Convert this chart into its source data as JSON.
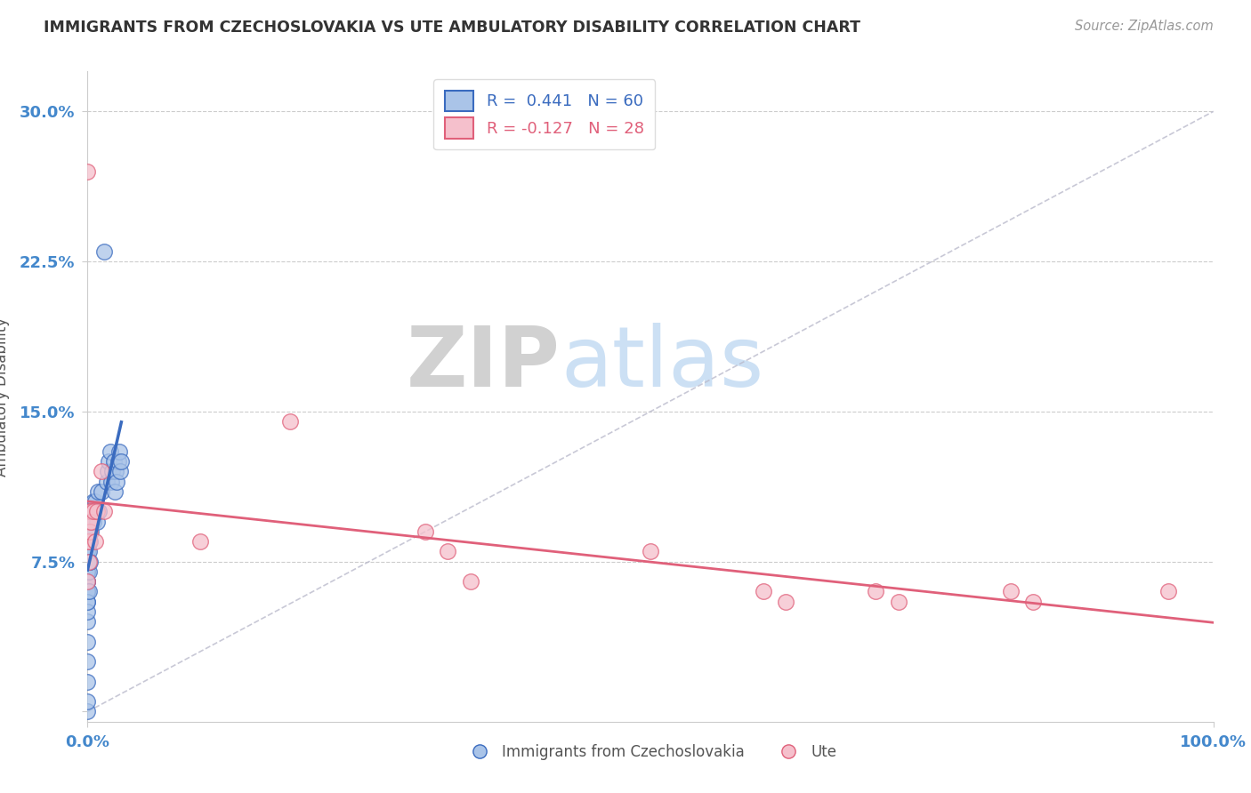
{
  "title": "IMMIGRANTS FROM CZECHOSLOVAKIA VS UTE AMBULATORY DISABILITY CORRELATION CHART",
  "source": "Source: ZipAtlas.com",
  "ylabel": "Ambulatory Disability",
  "xlim": [
    0,
    1.0
  ],
  "ylim": [
    -0.005,
    0.32
  ],
  "yticks": [
    0.0,
    0.075,
    0.15,
    0.225,
    0.3
  ],
  "ytick_labels": [
    "",
    "7.5%",
    "15.0%",
    "22.5%",
    "30.0%"
  ],
  "legend_labels": [
    "Immigrants from Czechoslovakia",
    "Ute"
  ],
  "r_blue": 0.441,
  "n_blue": 60,
  "r_pink": -0.127,
  "n_pink": 28,
  "blue_color": "#aac4e8",
  "pink_color": "#f5c0cc",
  "blue_line_color": "#3a6bbf",
  "pink_line_color": "#e0607a",
  "grid_color": "#cccccc",
  "background_color": "#ffffff",
  "title_color": "#333333",
  "axis_label_color": "#555555",
  "tick_label_color": "#4488cc",
  "watermark_zip": "ZIP",
  "watermark_atlas": "atlas",
  "blue_x": [
    0.0,
    0.0,
    0.0,
    0.0,
    0.0,
    0.0,
    0.0,
    0.0,
    0.0,
    0.0,
    0.0,
    0.0,
    0.0,
    0.0,
    0.0,
    0.0,
    0.0,
    0.0,
    0.0,
    0.0,
    0.001,
    0.001,
    0.001,
    0.001,
    0.001,
    0.001,
    0.001,
    0.001,
    0.002,
    0.002,
    0.002,
    0.002,
    0.003,
    0.003,
    0.003,
    0.004,
    0.004,
    0.005,
    0.005,
    0.006,
    0.007,
    0.008,
    0.009,
    0.01,
    0.012,
    0.015,
    0.017,
    0.018,
    0.019,
    0.02,
    0.021,
    0.022,
    0.023,
    0.024,
    0.025,
    0.026,
    0.027,
    0.028,
    0.029,
    0.03
  ],
  "blue_y": [
    0.0,
    0.005,
    0.015,
    0.025,
    0.035,
    0.045,
    0.055,
    0.06,
    0.065,
    0.07,
    0.075,
    0.08,
    0.085,
    0.09,
    0.095,
    0.05,
    0.06,
    0.07,
    0.055,
    0.065,
    0.06,
    0.07,
    0.075,
    0.08,
    0.085,
    0.09,
    0.095,
    0.1,
    0.075,
    0.085,
    0.09,
    0.1,
    0.09,
    0.095,
    0.1,
    0.095,
    0.1,
    0.095,
    0.105,
    0.1,
    0.105,
    0.095,
    0.11,
    0.1,
    0.11,
    0.23,
    0.115,
    0.12,
    0.125,
    0.13,
    0.115,
    0.12,
    0.125,
    0.11,
    0.12,
    0.115,
    0.125,
    0.13,
    0.12,
    0.125
  ],
  "pink_x": [
    0.0,
    0.0,
    0.0,
    0.001,
    0.001,
    0.001,
    0.002,
    0.002,
    0.003,
    0.003,
    0.005,
    0.007,
    0.008,
    0.012,
    0.015,
    0.1,
    0.18,
    0.3,
    0.32,
    0.34,
    0.5,
    0.6,
    0.62,
    0.7,
    0.72,
    0.82,
    0.84,
    0.96
  ],
  "pink_y": [
    0.27,
    0.085,
    0.065,
    0.095,
    0.085,
    0.075,
    0.1,
    0.09,
    0.1,
    0.095,
    0.1,
    0.085,
    0.1,
    0.12,
    0.1,
    0.085,
    0.145,
    0.09,
    0.08,
    0.065,
    0.08,
    0.06,
    0.055,
    0.06,
    0.055,
    0.06,
    0.055,
    0.06
  ]
}
